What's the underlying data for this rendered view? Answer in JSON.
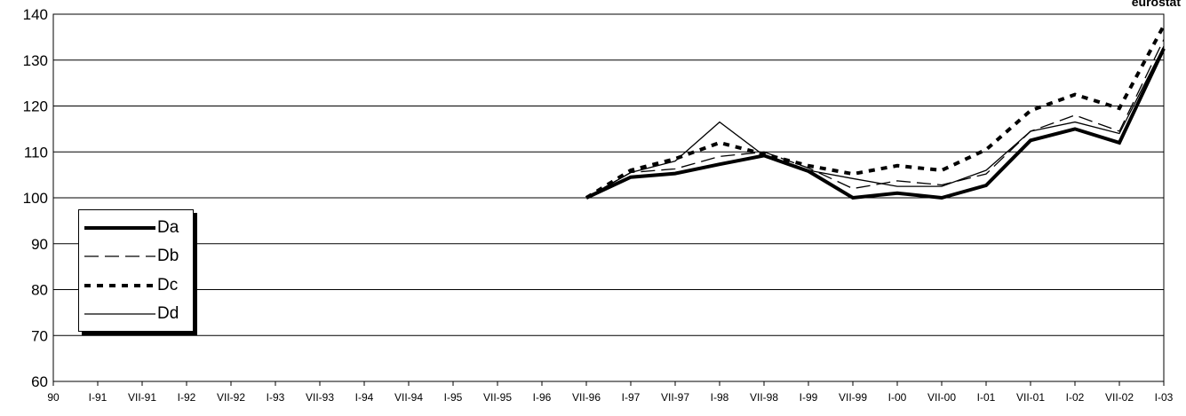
{
  "logo_text": "eurostat",
  "chart_data": {
    "type": "line",
    "x": [
      "90",
      "I-91",
      "VII-91",
      "I-92",
      "VII-92",
      "I-93",
      "VII-93",
      "I-94",
      "VII-94",
      "I-95",
      "VII-95",
      "I-96",
      "VII-96",
      "I-97",
      "VII-97",
      "I-98",
      "VII-98",
      "I-99",
      "VII-99",
      "I-00",
      "VII-00",
      "I-01",
      "VII-01",
      "I-02",
      "VII-02",
      "I-03"
    ],
    "ylim": [
      60,
      140
    ],
    "yticks": [
      60,
      70,
      80,
      90,
      100,
      110,
      120,
      130,
      140
    ],
    "grid": true,
    "legend_position": "left",
    "series": [
      {
        "name": "Da",
        "style": "thick-solid",
        "values": [
          null,
          null,
          null,
          null,
          null,
          null,
          null,
          null,
          null,
          null,
          null,
          null,
          100,
          104.5,
          105.3,
          107.3,
          109.2,
          105.8,
          100,
          101,
          100,
          102.7,
          112.5,
          115,
          112,
          132.5
        ]
      },
      {
        "name": "Db",
        "style": "dashed",
        "values": [
          null,
          null,
          null,
          null,
          null,
          null,
          null,
          null,
          null,
          null,
          null,
          null,
          100,
          105.5,
          106.3,
          109,
          110,
          106.5,
          102,
          103.7,
          102.8,
          105.2,
          114.5,
          118,
          114.5,
          134.5
        ]
      },
      {
        "name": "Dc",
        "style": "dotted-thick",
        "values": [
          null,
          null,
          null,
          null,
          null,
          null,
          null,
          null,
          null,
          null,
          null,
          null,
          100,
          106,
          108.5,
          112,
          109.5,
          107,
          105.2,
          107,
          106,
          110.5,
          119,
          122.5,
          119.5,
          137.5
        ]
      },
      {
        "name": "Dd",
        "style": "thin-solid",
        "values": [
          null,
          null,
          null,
          null,
          null,
          null,
          null,
          null,
          null,
          null,
          null,
          null,
          100,
          105.5,
          108,
          116.5,
          109.2,
          106,
          104.2,
          102.5,
          102.5,
          106,
          114.5,
          116.5,
          114,
          133
        ]
      }
    ]
  }
}
